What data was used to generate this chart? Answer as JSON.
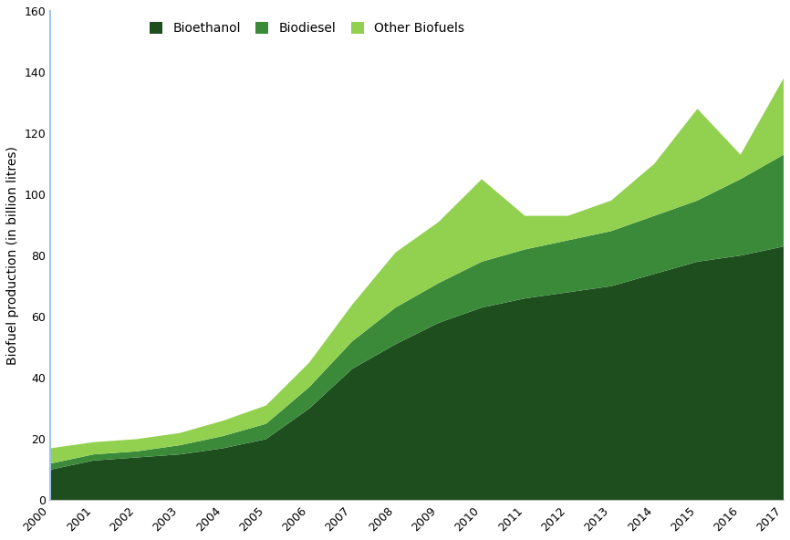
{
  "years": [
    2000,
    2001,
    2002,
    2003,
    2004,
    2005,
    2006,
    2007,
    2008,
    2009,
    2010,
    2011,
    2012,
    2013,
    2014,
    2015,
    2016,
    2017
  ],
  "bioethanol": [
    10,
    13,
    14,
    15,
    17,
    20,
    30,
    43,
    51,
    58,
    63,
    66,
    68,
    70,
    74,
    78,
    80,
    83
  ],
  "biodiesel": [
    2,
    2,
    2,
    3,
    4,
    5,
    7,
    9,
    12,
    13,
    15,
    16,
    17,
    18,
    19,
    20,
    25,
    30
  ],
  "other_biofuels": [
    5,
    4,
    4,
    4,
    5,
    6,
    8,
    12,
    18,
    20,
    27,
    11,
    8,
    10,
    17,
    30,
    8,
    25
  ],
  "colors": {
    "bioethanol": "#1e4d1e",
    "biodiesel": "#3a8a3a",
    "other_biofuels": "#92d14f"
  },
  "labels": {
    "bioethanol": "Bioethanol",
    "biodiesel": "Biodiesel",
    "other_biofuels": "Other Biofuels"
  },
  "ylabel": "Biofuel production (in billion litres)",
  "ylim": [
    0,
    160
  ],
  "yticks": [
    0,
    20,
    40,
    60,
    80,
    100,
    120,
    140,
    160
  ],
  "background_color": "#ffffff",
  "left_spine_color": "#9ec4e8",
  "bottom_spine_color": "#c0c0c0"
}
